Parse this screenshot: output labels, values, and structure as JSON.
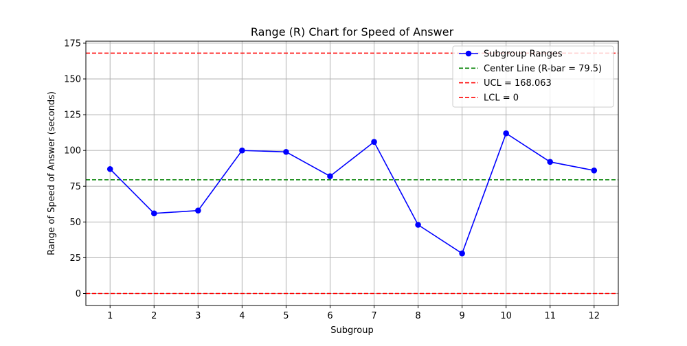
{
  "chart_data": {
    "type": "line",
    "title": "Range (R) Chart for Speed of Answer",
    "xlabel": "Subgroup",
    "ylabel": "Range of Speed of Answer (seconds)",
    "xlim": [
      0.45,
      12.55
    ],
    "ylim": [
      -8.4,
      176.4
    ],
    "x_ticks": [
      1,
      2,
      3,
      4,
      5,
      6,
      7,
      8,
      9,
      10,
      11,
      12
    ],
    "y_ticks": [
      0,
      25,
      50,
      75,
      100,
      125,
      150,
      175
    ],
    "grid": true,
    "legend_position": "upper-right",
    "series": [
      {
        "name": "Subgroup Ranges",
        "color": "#0000ff",
        "marker": "circle",
        "x": [
          1,
          2,
          3,
          4,
          5,
          6,
          7,
          8,
          9,
          10,
          11,
          12
        ],
        "values": [
          87,
          56,
          58,
          100,
          99,
          82,
          106,
          48,
          28,
          112,
          92,
          86
        ]
      }
    ],
    "reference_lines": [
      {
        "name": "Center Line (R-bar = 79.5)",
        "value": 79.5,
        "color": "#008000",
        "style": "dashed"
      },
      {
        "name": "UCL = 168.063",
        "value": 168.063,
        "color": "#ff0000",
        "style": "dashed"
      },
      {
        "name": "LCL = 0",
        "value": 0,
        "color": "#ff0000",
        "style": "dashed"
      }
    ],
    "colors": {
      "grid": "#b0b0b0",
      "axes": "#000000"
    }
  }
}
